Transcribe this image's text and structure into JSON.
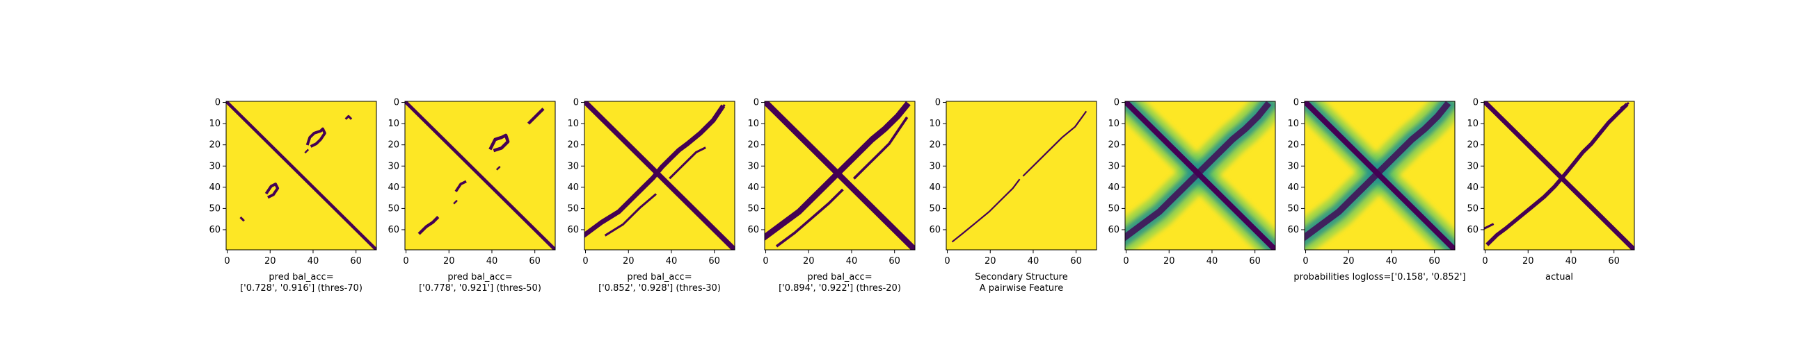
{
  "chart_data": [
    {
      "type": "heatmap",
      "kind": "binary",
      "title": "",
      "xlabel": "pred bal_acc=\n['0.728', '0.916'] (thres-70)",
      "ylabel": "",
      "x_ticks": [
        "0",
        "20",
        "40",
        "60"
      ],
      "y_ticks": [
        "0",
        "10",
        "20",
        "30",
        "40",
        "50",
        "60"
      ],
      "xlim": [
        0,
        70
      ],
      "ylim": [
        70,
        0
      ],
      "diagonals": [
        {
          "direction": "main",
          "x_range": [
            0,
            70
          ],
          "width": 1.5
        },
        {
          "direction": "path",
          "points": [
            [
              38,
              20
            ],
            [
              39,
              17
            ],
            [
              41,
              15
            ],
            [
              44,
              14
            ],
            [
              45,
              13
            ],
            [
              46,
              15
            ],
            [
              44,
              18
            ],
            [
              42,
              20
            ],
            [
              40,
              21
            ]
          ],
          "width": 1.3
        },
        {
          "direction": "path",
          "points": [
            [
              19,
              43
            ],
            [
              21,
              40
            ],
            [
              23,
              39
            ],
            [
              24,
              41
            ],
            [
              22,
              44
            ],
            [
              20,
              45
            ]
          ],
          "width": 1.3
        },
        {
          "direction": "path",
          "points": [
            [
              56,
              8
            ],
            [
              57,
              7
            ],
            [
              58,
              8
            ]
          ],
          "width": 1.0
        },
        {
          "direction": "path",
          "points": [
            [
              7,
              55
            ],
            [
              8,
              56
            ]
          ],
          "width": 1.0
        },
        {
          "direction": "path",
          "points": [
            [
              37,
              24
            ],
            [
              38,
              23
            ]
          ],
          "width": 0.8
        }
      ]
    },
    {
      "type": "heatmap",
      "kind": "binary",
      "title": "",
      "xlabel": "pred bal_acc=\n['0.778', '0.921'] (thres-50)",
      "ylabel": "",
      "x_ticks": [
        "0",
        "20",
        "40",
        "60"
      ],
      "y_ticks": [
        "0",
        "10",
        "20",
        "30",
        "40",
        "50",
        "60"
      ],
      "xlim": [
        0,
        70
      ],
      "ylim": [
        70,
        0
      ],
      "diagonals": [
        {
          "direction": "main",
          "x_range": [
            0,
            70
          ],
          "width": 1.6
        },
        {
          "direction": "path",
          "points": [
            [
              40,
              22
            ],
            [
              42,
              18
            ],
            [
              45,
              17
            ],
            [
              47,
              16
            ],
            [
              48,
              19
            ],
            [
              45,
              22
            ],
            [
              42,
              23
            ]
          ],
          "width": 1.5
        },
        {
          "direction": "path",
          "points": [
            [
              58,
              10
            ],
            [
              62,
              6
            ],
            [
              64,
              4
            ]
          ],
          "width": 1.4
        },
        {
          "direction": "path",
          "points": [
            [
              7,
              62
            ],
            [
              10,
              59
            ],
            [
              13,
              57
            ],
            [
              15,
              55
            ]
          ],
          "width": 1.4
        },
        {
          "direction": "path",
          "points": [
            [
              24,
              42
            ],
            [
              26,
              39
            ],
            [
              28,
              38
            ]
          ],
          "width": 1.2
        },
        {
          "direction": "path",
          "points": [
            [
              23,
              48
            ],
            [
              24,
              47
            ]
          ],
          "width": 0.8
        },
        {
          "direction": "path",
          "points": [
            [
              43,
              32
            ],
            [
              44,
              31
            ]
          ],
          "width": 0.8
        }
      ]
    },
    {
      "type": "heatmap",
      "kind": "binary",
      "title": "",
      "xlabel": "pred bal_acc=\n['0.852', '0.928'] (thres-30)",
      "ylabel": "",
      "x_ticks": [
        "0",
        "20",
        "40",
        "60"
      ],
      "y_ticks": [
        "0",
        "10",
        "20",
        "30",
        "40",
        "50",
        "60"
      ],
      "xlim": [
        0,
        70
      ],
      "ylim": [
        70,
        0
      ],
      "diagonals": [
        {
          "direction": "main",
          "x_range": [
            0,
            70
          ],
          "width": 2.4
        },
        {
          "direction": "path",
          "points": [
            [
              0,
              63
            ],
            [
              8,
              57
            ],
            [
              16,
              52
            ],
            [
              22,
              46
            ],
            [
              27,
              41
            ],
            [
              32,
              36
            ],
            [
              36,
              31
            ],
            [
              40,
              27
            ],
            [
              44,
              23
            ],
            [
              48,
              20
            ],
            [
              54,
              15
            ],
            [
              60,
              9
            ],
            [
              64,
              3
            ]
          ],
          "width": 2.2
        },
        {
          "direction": "path",
          "points": [
            [
              10,
              63
            ],
            [
              18,
              58
            ],
            [
              26,
              50
            ],
            [
              33,
              44
            ]
          ],
          "width": 1.0
        },
        {
          "direction": "path",
          "points": [
            [
              40,
              36
            ],
            [
              44,
              32
            ],
            [
              48,
              28
            ],
            [
              52,
              24
            ],
            [
              56,
              22
            ]
          ],
          "width": 1.0
        },
        {
          "direction": "path",
          "points": [
            [
              63,
              5
            ],
            [
              65,
              2
            ]
          ],
          "width": 1.0
        }
      ]
    },
    {
      "type": "heatmap",
      "kind": "binary",
      "title": "",
      "xlabel": "pred bal_acc=\n['0.894', '0.922'] (thres-20)",
      "ylabel": "",
      "x_ticks": [
        "0",
        "20",
        "40",
        "60"
      ],
      "y_ticks": [
        "0",
        "10",
        "20",
        "30",
        "40",
        "50",
        "60"
      ],
      "xlim": [
        0,
        70
      ],
      "ylim": [
        70,
        0
      ],
      "diagonals": [
        {
          "direction": "main",
          "x_range": [
            0,
            70
          ],
          "width": 2.8
        },
        {
          "direction": "path",
          "points": [
            [
              0,
              64
            ],
            [
              8,
              58
            ],
            [
              16,
              52
            ],
            [
              22,
              46
            ],
            [
              28,
              40
            ],
            [
              33,
              35
            ],
            [
              38,
              30
            ],
            [
              42,
              26
            ],
            [
              46,
              22
            ],
            [
              50,
              18
            ],
            [
              56,
              13
            ],
            [
              62,
              7
            ],
            [
              66,
              2
            ]
          ],
          "width": 2.8
        },
        {
          "direction": "path",
          "points": [
            [
              6,
              68
            ],
            [
              14,
              62
            ],
            [
              22,
              55
            ],
            [
              30,
              48
            ],
            [
              36,
              42
            ]
          ],
          "width": 1.2
        },
        {
          "direction": "path",
          "points": [
            [
              42,
              36
            ],
            [
              46,
              32
            ],
            [
              50,
              28
            ],
            [
              54,
              24
            ],
            [
              58,
              20
            ],
            [
              62,
              14
            ],
            [
              66,
              8
            ]
          ],
          "width": 1.2
        }
      ]
    },
    {
      "type": "heatmap",
      "kind": "binary",
      "title": "",
      "xlabel": "Secondary Structure\nA pairwise Feature",
      "ylabel": "",
      "x_ticks": [
        "0",
        "20",
        "40",
        "60"
      ],
      "y_ticks": [
        "0",
        "10",
        "20",
        "30",
        "40",
        "50",
        "60"
      ],
      "xlim": [
        0,
        70
      ],
      "ylim": [
        70,
        0
      ],
      "diagonals": [
        {
          "direction": "path",
          "points": [
            [
              3,
              66
            ],
            [
              8,
              62
            ],
            [
              14,
              57
            ],
            [
              20,
              52
            ],
            [
              26,
              46
            ],
            [
              31,
              41
            ],
            [
              34,
              37
            ]
          ],
          "width": 0.7
        },
        {
          "direction": "path",
          "points": [
            [
              36,
              35
            ],
            [
              42,
              29
            ],
            [
              48,
              23
            ],
            [
              54,
              17
            ],
            [
              60,
              12
            ],
            [
              65,
              5
            ]
          ],
          "width": 0.7
        }
      ]
    },
    {
      "type": "heatmap",
      "kind": "probability",
      "title": "",
      "xlabel": "",
      "ylabel": "",
      "x_ticks": [
        "0",
        "20",
        "40",
        "60"
      ],
      "y_ticks": [
        "0",
        "10",
        "20",
        "30",
        "40",
        "50",
        "60"
      ],
      "xlim": [
        0,
        70
      ],
      "ylim": [
        70,
        0
      ],
      "diagonals": [
        {
          "direction": "main",
          "x_range": [
            0,
            70
          ],
          "width": 2.6
        },
        {
          "direction": "path",
          "points": [
            [
              0,
              64
            ],
            [
              8,
              58
            ],
            [
              16,
              52
            ],
            [
              22,
              46
            ],
            [
              28,
              40
            ],
            [
              33,
              35
            ],
            [
              38,
              30
            ],
            [
              42,
              26
            ],
            [
              46,
              22
            ],
            [
              50,
              18
            ],
            [
              56,
              13
            ],
            [
              62,
              7
            ],
            [
              66,
              2
            ]
          ],
          "width": 3.0
        }
      ]
    },
    {
      "type": "heatmap",
      "kind": "probability",
      "title": "",
      "xlabel": "probabilities logloss=['0.158', '0.852']",
      "ylabel": "",
      "x_ticks": [
        "0",
        "20",
        "40",
        "60"
      ],
      "y_ticks": [
        "0",
        "10",
        "20",
        "30",
        "40",
        "50",
        "60"
      ],
      "xlim": [
        0,
        70
      ],
      "ylim": [
        70,
        0
      ],
      "diagonals": [
        {
          "direction": "main",
          "x_range": [
            0,
            70
          ],
          "width": 2.6
        },
        {
          "direction": "path",
          "points": [
            [
              0,
              64
            ],
            [
              8,
              58
            ],
            [
              16,
              52
            ],
            [
              22,
              46
            ],
            [
              28,
              40
            ],
            [
              33,
              35
            ],
            [
              38,
              30
            ],
            [
              42,
              26
            ],
            [
              46,
              22
            ],
            [
              50,
              18
            ],
            [
              56,
              13
            ],
            [
              62,
              7
            ],
            [
              66,
              2
            ]
          ],
          "width": 3.0
        }
      ]
    },
    {
      "type": "heatmap",
      "kind": "binary",
      "title": "",
      "xlabel": "actual",
      "ylabel": "",
      "x_ticks": [
        "0",
        "20",
        "40",
        "60"
      ],
      "y_ticks": [
        "0",
        "10",
        "20",
        "30",
        "40",
        "50",
        "60"
      ],
      "xlim": [
        0,
        70
      ],
      "ylim": [
        70,
        0
      ],
      "diagonals": [
        {
          "direction": "main",
          "x_range": [
            0,
            70
          ],
          "width": 2.2
        },
        {
          "direction": "path",
          "points": [
            [
              2,
              67
            ],
            [
              6,
              63
            ],
            [
              10,
              60
            ],
            [
              16,
              55
            ],
            [
              22,
              50
            ],
            [
              28,
              45
            ],
            [
              33,
              40
            ],
            [
              38,
              34
            ],
            [
              42,
              29
            ],
            [
              46,
              24
            ],
            [
              50,
              20
            ],
            [
              54,
              15
            ],
            [
              58,
              10
            ],
            [
              62,
              6
            ],
            [
              66,
              2
            ]
          ],
          "width": 1.8
        },
        {
          "direction": "path",
          "points": [
            [
              0,
              60
            ],
            [
              4,
              58
            ]
          ],
          "width": 1.0
        },
        {
          "direction": "path",
          "points": [
            [
              64,
              3
            ],
            [
              67,
              1
            ]
          ],
          "width": 1.0
        }
      ]
    }
  ],
  "colors": {
    "background": "#fde725",
    "foreground": "#440154",
    "mid": "#21918c",
    "light": "#5ec962",
    "axis": "#000000"
  }
}
